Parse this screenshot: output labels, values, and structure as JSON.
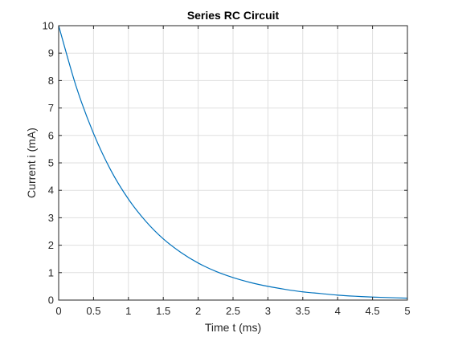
{
  "chart_data": {
    "type": "line",
    "title": "Series RC Circuit",
    "xlabel": "Time t (ms)",
    "ylabel": "Current i (mA)",
    "xlim": [
      0,
      5
    ],
    "ylim": [
      0,
      10
    ],
    "xticks": [
      0,
      0.5,
      1,
      1.5,
      2,
      2.5,
      3,
      3.5,
      4,
      4.5,
      5
    ],
    "xtick_labels": [
      "0",
      "0.5",
      "1",
      "1.5",
      "2",
      "2.5",
      "3",
      "3.5",
      "4",
      "4.5",
      "5"
    ],
    "yticks": [
      0,
      1,
      2,
      3,
      4,
      5,
      6,
      7,
      8,
      9,
      10
    ],
    "ytick_labels": [
      "0",
      "1",
      "2",
      "3",
      "4",
      "5",
      "6",
      "7",
      "8",
      "9",
      "10"
    ],
    "grid": true,
    "series": [
      {
        "color": "#0072bd",
        "x": [
          0,
          0.25,
          0.5,
          0.75,
          1,
          1.25,
          1.5,
          1.75,
          2,
          2.25,
          2.5,
          2.75,
          3,
          3.25,
          3.5,
          3.75,
          4,
          4.25,
          4.5,
          4.75,
          5
        ],
        "y": [
          10,
          7.79,
          6.07,
          4.72,
          3.68,
          2.87,
          2.23,
          1.74,
          1.35,
          1.05,
          0.82,
          0.64,
          0.5,
          0.39,
          0.3,
          0.24,
          0.18,
          0.14,
          0.11,
          0.09,
          0.07
        ]
      }
    ]
  }
}
